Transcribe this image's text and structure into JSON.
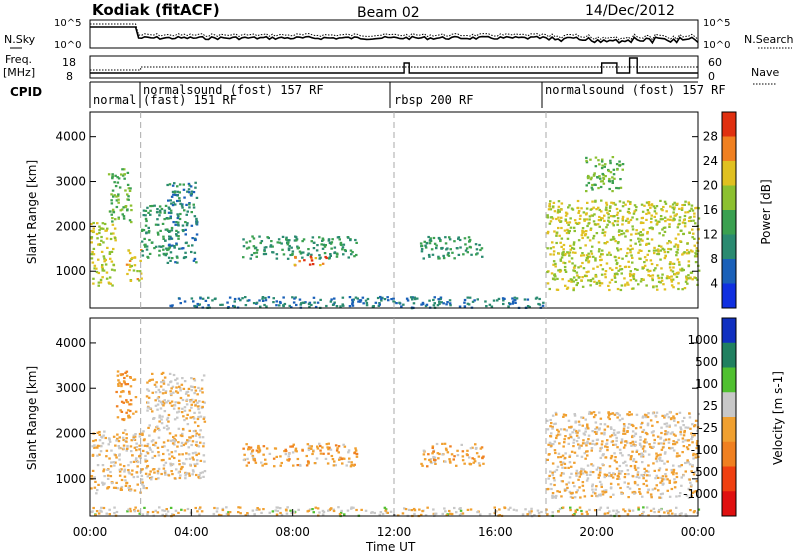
{
  "header": {
    "station": "Kodiak (fitACF)",
    "beam": "Beam 02",
    "date": "14/Dec/2012"
  },
  "noise_panel": {
    "left_label": "N.Sky",
    "right_label": "N.Search",
    "ticks_left": [
      "10^5",
      "10^0"
    ],
    "ticks_right": [
      "10^5",
      "10^0"
    ]
  },
  "freq_panel": {
    "left_label_1": "Freq.",
    "left_label_2": "[MHz]",
    "right_label": "Nave",
    "ticks_left": [
      "18",
      "8"
    ],
    "ticks_right": [
      "60",
      "0"
    ]
  },
  "cpid_panel": {
    "label": "CPID",
    "programs": [
      {
        "name": "normal",
        "start_h": 0.0,
        "end_h": 2.0
      },
      {
        "name": "normalsound (fost) 157 RF",
        "start_h": 2.0,
        "end_h": 12.0
      },
      {
        "name": "(fast) 151 RF",
        "start_h": 2.0,
        "end_h": 12.0
      },
      {
        "name": "rbsp 200 RF",
        "start_h": 12.0,
        "end_h": 18.0
      },
      {
        "name": "normalsound (fost) 157 RF",
        "start_h": 18.0,
        "end_h": 24.0
      }
    ]
  },
  "chart_data": [
    {
      "type": "heatmap",
      "quantity": "Power",
      "ylabel": "Slant Range [km]",
      "ylim": [
        180,
        4550
      ],
      "yticks": [
        1000,
        2000,
        3000,
        4000
      ],
      "xlim_h": [
        0,
        24
      ],
      "colorbar": {
        "label": "Power [dB]",
        "range": [
          0,
          32
        ],
        "ticks": [
          "4",
          "8",
          "12",
          "16",
          "20",
          "24",
          "28"
        ],
        "colors": [
          "#1030e0",
          "#1a60b8",
          "#2a8a70",
          "#3aa050",
          "#8cc030",
          "#e0c020",
          "#f08020",
          "#e03010"
        ]
      },
      "regions": [
        {
          "t0": 0.0,
          "t1": 1.0,
          "r0": 700,
          "r1": 2100,
          "level": 20
        },
        {
          "t0": 0.7,
          "t1": 1.6,
          "r0": 2100,
          "r1": 3300,
          "level": 16
        },
        {
          "t0": 1.4,
          "t1": 2.0,
          "r0": 800,
          "r1": 1500,
          "level": 22
        },
        {
          "t0": 2.0,
          "t1": 3.2,
          "r0": 1300,
          "r1": 2500,
          "level": 12
        },
        {
          "t0": 3.0,
          "t1": 4.2,
          "r0": 1200,
          "r1": 3000,
          "level": 10
        },
        {
          "t0": 6.0,
          "t1": 10.5,
          "r0": 1300,
          "r1": 1800,
          "level": 12
        },
        {
          "t0": 8.0,
          "t1": 9.3,
          "r0": 1150,
          "r1": 1350,
          "level": 26
        },
        {
          "t0": 3.0,
          "t1": 18.0,
          "r0": 200,
          "r1": 450,
          "level": 8
        },
        {
          "t0": 13.0,
          "t1": 15.5,
          "r0": 1300,
          "r1": 1800,
          "level": 12
        },
        {
          "t0": 18.0,
          "t1": 24.0,
          "r0": 600,
          "r1": 2600,
          "level": 20
        },
        {
          "t0": 19.5,
          "t1": 21.0,
          "r0": 2800,
          "r1": 3600,
          "level": 16
        }
      ]
    },
    {
      "type": "heatmap",
      "quantity": "Velocity",
      "ylabel": "Slant Range [km]",
      "ylim": [
        180,
        4550
      ],
      "yticks": [
        1000,
        2000,
        3000,
        4000
      ],
      "xlim_h": [
        0,
        24
      ],
      "colorbar": {
        "label": "Velocity [m s-1]",
        "range": [
          -1250,
          1250
        ],
        "ticks": [
          "1000",
          "500",
          "100",
          "25",
          "-25",
          "-100",
          "-500",
          "-1000"
        ],
        "colors": [
          "#e01010",
          "#f04010",
          "#f08020",
          "#f0a030",
          "#c8c8c8",
          "#50c030",
          "#208060",
          "#1030c0"
        ]
      },
      "regions": [
        {
          "t0": 0.0,
          "t1": 2.2,
          "r0": 700,
          "r1": 2100,
          "level": -10
        },
        {
          "t0": 1.0,
          "t1": 1.8,
          "r0": 2300,
          "r1": 3400,
          "level": -300
        },
        {
          "t0": 2.2,
          "t1": 4.5,
          "r0": 1000,
          "r1": 3400,
          "level": 0
        },
        {
          "t0": 6.0,
          "t1": 10.5,
          "r0": 1300,
          "r1": 1800,
          "level": -150
        },
        {
          "t0": 13.0,
          "t1": 15.5,
          "r0": 1300,
          "r1": 1800,
          "level": -150
        },
        {
          "t0": 18.0,
          "t1": 24.0,
          "r0": 600,
          "r1": 2500,
          "level": 0
        },
        {
          "t0": 0.0,
          "t1": 24.0,
          "r0": 200,
          "r1": 400,
          "level": 60
        }
      ]
    }
  ],
  "xaxis": {
    "label": "Time UT",
    "ticks": [
      {
        "h": 0,
        "label": "00:00"
      },
      {
        "h": 4,
        "label": "04:00"
      },
      {
        "h": 8,
        "label": "08:00"
      },
      {
        "h": 12,
        "label": "12:00"
      },
      {
        "h": 16,
        "label": "16:00"
      },
      {
        "h": 20,
        "label": "20:00"
      },
      {
        "h": 24,
        "label": "00:00"
      }
    ]
  }
}
